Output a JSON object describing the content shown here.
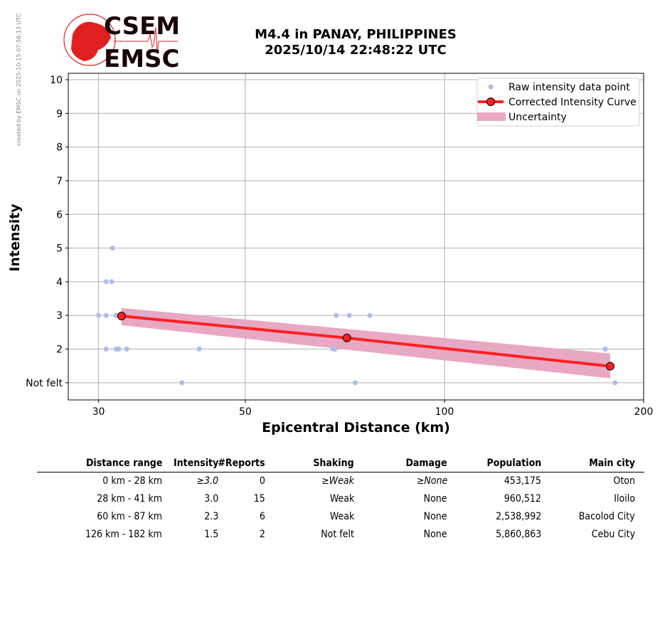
{
  "credit": "created by EMSC on 2025-10-15 07:58:13 UTC",
  "logo": {
    "line1": "CSEM",
    "line2": "EMSC"
  },
  "title": {
    "line1": "M4.4 in PANAY, PHILIPPINES",
    "line2": "2025/10/14 22:48:22 UTC"
  },
  "chart_data": {
    "type": "scatter",
    "xlabel": "Epicentral Distance (km)",
    "ylabel": "Intensity",
    "xscale": "log",
    "xlim": [
      27,
      200
    ],
    "ylim": [
      0.49,
      10.19
    ],
    "xticks": [
      30,
      50,
      100,
      200
    ],
    "xtick_labels": [
      "30",
      "50",
      "100",
      "200"
    ],
    "yticks": [
      1,
      2,
      3,
      4,
      5,
      6,
      7,
      8,
      9,
      10
    ],
    "ytick_labels": [
      "Not felt",
      "2",
      "3",
      "4",
      "5",
      "6",
      "7",
      "8",
      "9",
      "10"
    ],
    "grid": true,
    "legend_placement": "top-right",
    "legend": [
      "Raw intensity data point",
      "Corrected Intensity Curve",
      "Uncertainty"
    ],
    "colors": {
      "raw": "#b0bce8",
      "curve": "#ff2020",
      "band": "#e8a8c4"
    },
    "raw_points": [
      {
        "x": 31.5,
        "y": 5
      },
      {
        "x": 30.8,
        "y": 4
      },
      {
        "x": 31.4,
        "y": 4
      },
      {
        "x": 30.0,
        "y": 3
      },
      {
        "x": 30.8,
        "y": 3
      },
      {
        "x": 31.9,
        "y": 3
      },
      {
        "x": 35.2,
        "y": 3
      },
      {
        "x": 68.6,
        "y": 3
      },
      {
        "x": 71.8,
        "y": 3
      },
      {
        "x": 77.1,
        "y": 3
      },
      {
        "x": 30.8,
        "y": 2
      },
      {
        "x": 31.9,
        "y": 2
      },
      {
        "x": 32.2,
        "y": 2
      },
      {
        "x": 33.1,
        "y": 2
      },
      {
        "x": 42.6,
        "y": 2
      },
      {
        "x": 67.8,
        "y": 2
      },
      {
        "x": 68.3,
        "y": 2
      },
      {
        "x": 175,
        "y": 2
      },
      {
        "x": 40.1,
        "y": 1
      },
      {
        "x": 73.3,
        "y": 1
      },
      {
        "x": 181,
        "y": 1
      }
    ],
    "curve": [
      {
        "x": 32.5,
        "y": 2.98
      },
      {
        "x": 71.2,
        "y": 2.33
      },
      {
        "x": 178,
        "y": 1.49
      }
    ],
    "uncertainty": {
      "upper": [
        {
          "x": 32.5,
          "y": 3.22
        },
        {
          "x": 178,
          "y": 1.87
        }
      ],
      "lower": [
        {
          "x": 32.5,
          "y": 2.71
        },
        {
          "x": 178,
          "y": 1.13
        }
      ]
    }
  },
  "table": {
    "headers": [
      "Distance range",
      "Intensity",
      "#Reports",
      "Shaking",
      "Damage",
      "Population",
      "Main city"
    ],
    "rows": [
      [
        "0 km -   28 km",
        "≥3.0",
        "0",
        "≥Weak",
        "≥None",
        "453,175",
        "Oton"
      ],
      [
        "28 km -   41 km",
        "3.0",
        "15",
        "Weak",
        "None",
        "960,512",
        "Iloilo"
      ],
      [
        "60 km -   87 km",
        "2.3",
        "6",
        "Weak",
        "None",
        "2,538,992",
        "Bacolod City"
      ],
      [
        "126 km -  182 km",
        "1.5",
        "2",
        "Not felt",
        "None",
        "5,860,863",
        "Cebu City"
      ]
    ]
  }
}
